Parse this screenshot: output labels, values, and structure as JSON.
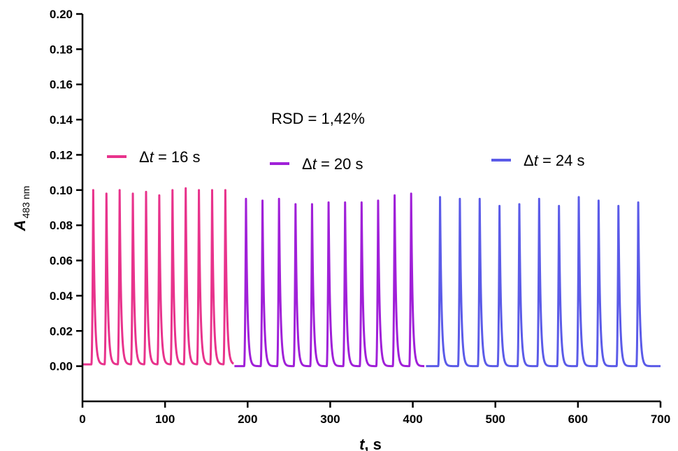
{
  "chart_data": {
    "type": "line",
    "title": "",
    "xlabel": {
      "prefix": "t",
      "suffix": ", s"
    },
    "ylabel": {
      "main": "A",
      "sub": "483 nm"
    },
    "xlim": [
      0,
      700
    ],
    "ylim": [
      -0.02,
      0.2
    ],
    "xticks": [
      0,
      100,
      200,
      300,
      400,
      500,
      600,
      700
    ],
    "xtick_labels": [
      "0",
      "100",
      "200",
      "300",
      "400",
      "500",
      "600",
      "700"
    ],
    "yticks": [
      0,
      0.02,
      0.04,
      0.06,
      0.08,
      0.1,
      0.12,
      0.14,
      0.16,
      0.18,
      0.2
    ],
    "ytick_labels": [
      "0.00",
      "0.02",
      "0.04",
      "0.06",
      "0.08",
      "0.10",
      "0.12",
      "0.14",
      "0.16",
      "0.18",
      "0.20"
    ],
    "grid": false,
    "annotation": "RSD = 1,42%",
    "series": [
      {
        "name": {
          "prefix": "Δ",
          "var": "t",
          "rest": " = 16 s"
        },
        "color": "#e8338c",
        "x_range": [
          0,
          183
        ],
        "peak_times": [
          13,
          29,
          45,
          61,
          77,
          93,
          109,
          125,
          141,
          157,
          173
        ],
        "peak_heights": [
          0.1,
          0.098,
          0.1,
          0.098,
          0.099,
          0.097,
          0.1,
          0.101,
          0.1,
          0.1,
          0.1
        ],
        "baseline": 0.001
      },
      {
        "name": {
          "prefix": "Δ",
          "var": "t",
          "rest": " = 20 s"
        },
        "color": "#a020d8",
        "x_range": [
          184,
          414
        ],
        "peak_times": [
          198,
          218,
          238,
          258,
          278,
          298,
          318,
          338,
          358,
          378,
          398
        ],
        "peak_heights": [
          0.095,
          0.094,
          0.095,
          0.092,
          0.092,
          0.093,
          0.093,
          0.093,
          0.094,
          0.097,
          0.098
        ],
        "baseline": 0.0
      },
      {
        "name": {
          "prefix": "Δ",
          "var": "t",
          "rest": " = 24 s"
        },
        "color": "#5b5be8",
        "x_range": [
          416,
          700
        ],
        "peak_times": [
          433,
          457,
          481,
          505,
          529,
          553,
          577,
          601,
          625,
          649,
          673
        ],
        "peak_heights": [
          0.096,
          0.095,
          0.095,
          0.091,
          0.092,
          0.095,
          0.091,
          0.096,
          0.094,
          0.091,
          0.093
        ],
        "baseline": 0.0
      }
    ],
    "legend_placement": "above-traces"
  }
}
